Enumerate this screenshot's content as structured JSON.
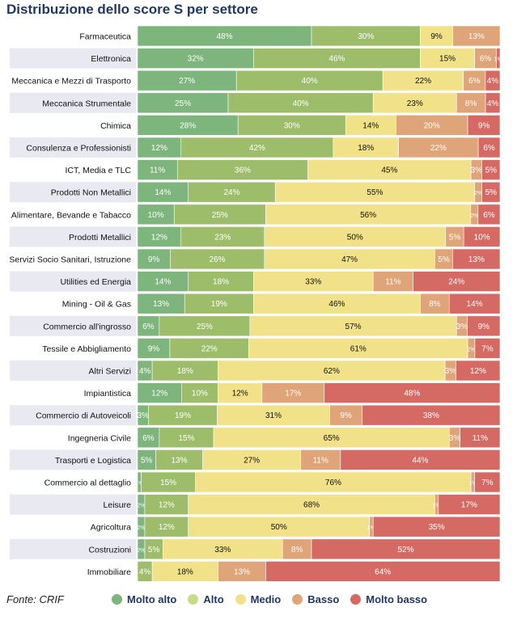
{
  "chart_data": {
    "type": "bar",
    "orientation": "horizontal",
    "stacked": true,
    "title": "Distribuzione dello score S per settore",
    "categories": [
      "Farmaceutica",
      "Elettronica",
      "Meccanica e Mezzi di Trasporto",
      "Meccanica Strumentale",
      "Chimica",
      "Consulenza e Professionisti",
      "ICT, Media e TLC",
      "Prodotti Non Metallici",
      "Alimentare, Bevande e Tabacco",
      "Prodotti Metallici",
      "Servizi Socio Sanitari, Istruzione",
      "Utilities ed Energia",
      "Mining - Oil & Gas",
      "Commercio all'ingrosso",
      "Tessile e Abbigliamento",
      "Altri Servizi",
      "Impiantistica",
      "Commercio di Autoveicoli",
      "Ingegneria Civile",
      "Trasporti e Logistica",
      "Commercio al dettaglio",
      "Leisure",
      "Agricoltura",
      "Costruzioni",
      "Immobiliare"
    ],
    "series": [
      {
        "name": "Molto  alto",
        "color": "#7db57c",
        "values": [
          48,
          32,
          27,
          25,
          28,
          12,
          11,
          14,
          10,
          12,
          9,
          14,
          13,
          6,
          9,
          4,
          12,
          3,
          6,
          5,
          1,
          2,
          2,
          2,
          0
        ]
      },
      {
        "name": "Alto",
        "color": "#9dbd6b",
        "values": [
          30,
          46,
          40,
          40,
          30,
          42,
          36,
          24,
          25,
          23,
          26,
          18,
          19,
          25,
          22,
          18,
          10,
          19,
          15,
          13,
          15,
          12,
          12,
          5,
          4
        ]
      },
      {
        "name": "Medio",
        "color": "#f1e189",
        "values": [
          9,
          15,
          22,
          23,
          14,
          18,
          45,
          55,
          56,
          50,
          47,
          33,
          46,
          57,
          61,
          62,
          12,
          31,
          65,
          27,
          76,
          68,
          50,
          33,
          18
        ]
      },
      {
        "name": "Basso",
        "color": "#dfa478",
        "values": [
          13,
          6,
          6,
          8,
          20,
          22,
          3,
          2,
          2,
          5,
          5,
          11,
          8,
          3,
          2,
          3,
          17,
          9,
          3,
          11,
          1,
          1,
          1,
          8,
          13
        ]
      },
      {
        "name": "Molto basso",
        "color": "#d56a65",
        "values": [
          0,
          1,
          4,
          4,
          9,
          6,
          5,
          5,
          6,
          10,
          13,
          24,
          14,
          9,
          7,
          12,
          48,
          38,
          11,
          44,
          7,
          17,
          35,
          52,
          64
        ]
      }
    ],
    "unit": "%",
    "legend": "bottom"
  },
  "footer": {
    "source": "Fonte: CRIF"
  }
}
